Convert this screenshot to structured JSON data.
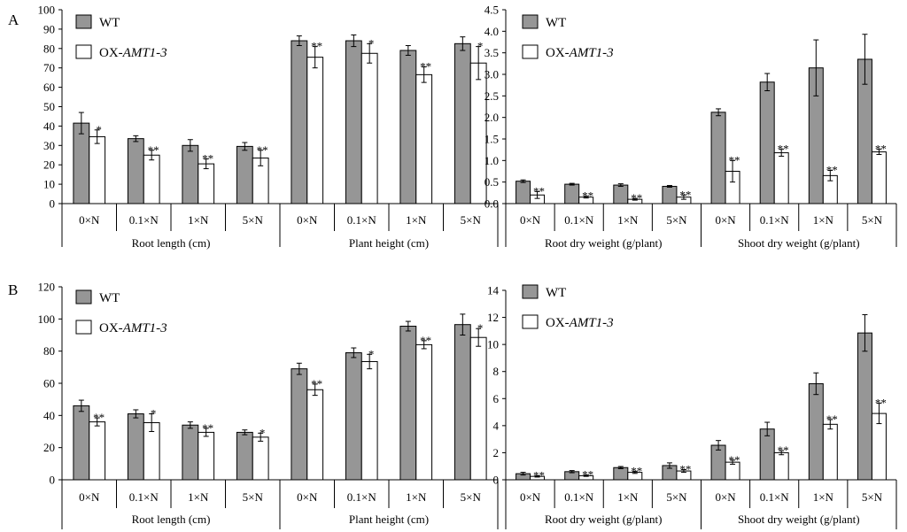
{
  "figure": {
    "panel_a": "A",
    "panel_b": "B"
  },
  "legend": {
    "wt": "WT",
    "ox_prefix": "OX-",
    "ox_gene": "AMT1-3"
  },
  "colors": {
    "wt_fill": "#969696",
    "ox_fill": "#ffffff",
    "stroke": "#000000"
  },
  "chart_data": [
    {
      "id": "A-left",
      "type": "bar",
      "panel": "A",
      "ylim": [
        0,
        100
      ],
      "yticks": [
        0,
        10,
        20,
        30,
        40,
        50,
        60,
        70,
        80,
        90,
        100
      ],
      "tick_decimals": 0,
      "categories": [
        "0×N",
        "0.1×N",
        "1×N",
        "5×N",
        "0×N",
        "0.1×N",
        "1×N",
        "5×N"
      ],
      "groups": [
        "Root length (cm)",
        "Plant height (cm)"
      ],
      "legend": "top-left",
      "series": [
        {
          "name": "WT",
          "values": [
            41.5,
            33.5,
            30.0,
            29.5,
            84.0,
            84.0,
            79.0,
            82.5
          ],
          "errors": [
            5.5,
            1.5,
            3.0,
            2.0,
            2.5,
            3.0,
            2.5,
            3.5
          ],
          "marks": [
            "",
            "",
            "",
            "",
            "",
            "",
            "",
            ""
          ]
        },
        {
          "name": "OX-AMT1-3",
          "values": [
            34.5,
            25.0,
            20.5,
            23.5,
            75.5,
            77.5,
            66.5,
            72.5
          ],
          "errors": [
            3.5,
            2.5,
            2.5,
            4.0,
            5.5,
            5.0,
            4.0,
            8.5
          ],
          "marks": [
            "*",
            "**",
            "**",
            "**",
            "**",
            "*",
            "**",
            "*"
          ]
        }
      ]
    },
    {
      "id": "A-right",
      "type": "bar",
      "panel": "A",
      "ylim": [
        0,
        4.5
      ],
      "yticks": [
        0,
        0.5,
        1,
        1.5,
        2,
        2.5,
        3,
        3.5,
        4,
        4.5
      ],
      "tick_decimals": 1,
      "categories": [
        "0×N",
        "0.1×N",
        "1×N",
        "5×N",
        "0×N",
        "0.1×N",
        "1×N",
        "5×N"
      ],
      "groups": [
        "Root dry weight (g/plant)",
        "Shoot dry weight (g/plant)"
      ],
      "legend": "top-left",
      "series": [
        {
          "name": "WT",
          "values": [
            0.52,
            0.45,
            0.43,
            0.4,
            2.12,
            2.82,
            3.15,
            3.35
          ],
          "errors": [
            0.03,
            0.02,
            0.03,
            0.02,
            0.08,
            0.2,
            0.65,
            0.58
          ],
          "marks": [
            "",
            "",
            "",
            "",
            "",
            "",
            "",
            ""
          ]
        },
        {
          "name": "OX-AMT1-3",
          "values": [
            0.2,
            0.15,
            0.1,
            0.15,
            0.75,
            1.18,
            0.65,
            1.2
          ],
          "errors": [
            0.08,
            0.02,
            0.02,
            0.05,
            0.25,
            0.08,
            0.12,
            0.06
          ],
          "marks": [
            "**",
            "**",
            "**",
            "**",
            "**",
            "**",
            "**",
            "**"
          ]
        }
      ]
    },
    {
      "id": "B-left",
      "type": "bar",
      "panel": "B",
      "ylim": [
        0,
        120
      ],
      "yticks": [
        0,
        20,
        40,
        60,
        80,
        100,
        120
      ],
      "tick_decimals": 0,
      "categories": [
        "0×N",
        "0.1×N",
        "1×N",
        "5×N",
        "0×N",
        "0.1×N",
        "1×N",
        "5×N"
      ],
      "groups": [
        "Root length (cm)",
        "Plant height (cm)"
      ],
      "legend": "top-left",
      "series": [
        {
          "name": "WT",
          "values": [
            46,
            41,
            34,
            29.5,
            69,
            79,
            95.5,
            96.5
          ],
          "errors": [
            3.5,
            2.5,
            2.0,
            1.5,
            3.5,
            3.0,
            3.0,
            6.5
          ],
          "marks": [
            "",
            "",
            "",
            "",
            "",
            "",
            "",
            ""
          ]
        },
        {
          "name": "OX-AMT1-3",
          "values": [
            36,
            35.5,
            29.5,
            26.5,
            56,
            73.5,
            84,
            88.5
          ],
          "errors": [
            2.5,
            5.5,
            2.5,
            2.5,
            3.5,
            4.5,
            2.5,
            5.5
          ],
          "marks": [
            "**",
            "*",
            "**",
            "*",
            "**",
            "*",
            "**",
            "*"
          ]
        }
      ]
    },
    {
      "id": "B-right",
      "type": "bar",
      "panel": "B",
      "ylim": [
        0,
        14
      ],
      "yticks": [
        0,
        2,
        4,
        6,
        8,
        10,
        12,
        14
      ],
      "tick_decimals": 0,
      "categories": [
        "0×N",
        "0.1×N",
        "1×N",
        "5×N",
        "0×N",
        "0.1×N",
        "1×N",
        "5×N"
      ],
      "groups": [
        "Root dry weight (g/plant)",
        "Shoot dry weight (g/plant)"
      ],
      "legend": "top-left",
      "series": [
        {
          "name": "WT",
          "values": [
            0.45,
            0.6,
            0.9,
            1.05,
            2.55,
            3.75,
            7.1,
            10.85
          ],
          "errors": [
            0.1,
            0.08,
            0.08,
            0.2,
            0.35,
            0.5,
            0.8,
            1.35
          ],
          "marks": [
            "",
            "",
            "",
            "",
            "",
            "",
            "",
            ""
          ]
        },
        {
          "name": "OX-AMT1-3",
          "values": [
            0.25,
            0.3,
            0.55,
            0.65,
            1.3,
            2.0,
            4.1,
            4.9
          ],
          "errors": [
            0.05,
            0.05,
            0.08,
            0.1,
            0.15,
            0.15,
            0.35,
            0.75
          ],
          "marks": [
            "**",
            "**",
            "**",
            "**",
            "**",
            "**",
            "**",
            "**"
          ]
        }
      ]
    }
  ]
}
